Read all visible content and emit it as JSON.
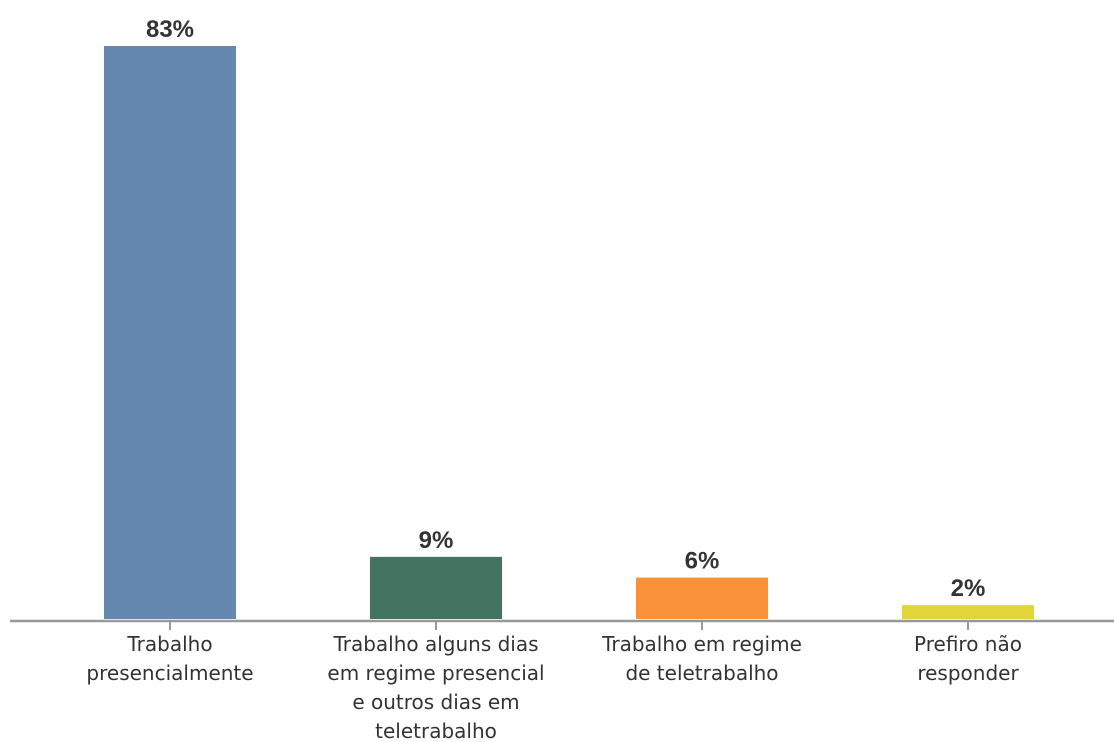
{
  "chart_data": {
    "type": "bar",
    "categories": [
      [
        "Trabalho",
        "presencialmente"
      ],
      [
        "Trabalho alguns dias",
        "em regime presencial",
        "e outros dias em",
        "teletrabalho"
      ],
      [
        "Trabalho em regime",
        "de teletrabalho"
      ],
      [
        "Prefiro não",
        "responder"
      ]
    ],
    "values": [
      83,
      9,
      6,
      2
    ],
    "value_labels": [
      "83%",
      "9%",
      "6%",
      "2%"
    ],
    "colors": [
      "#6588b0",
      "#427460",
      "#f79239",
      "#e2d53a"
    ],
    "title": "",
    "xlabel": "",
    "ylabel": "",
    "ylim": [
      0,
      83
    ],
    "grid": false,
    "legend": "none"
  }
}
